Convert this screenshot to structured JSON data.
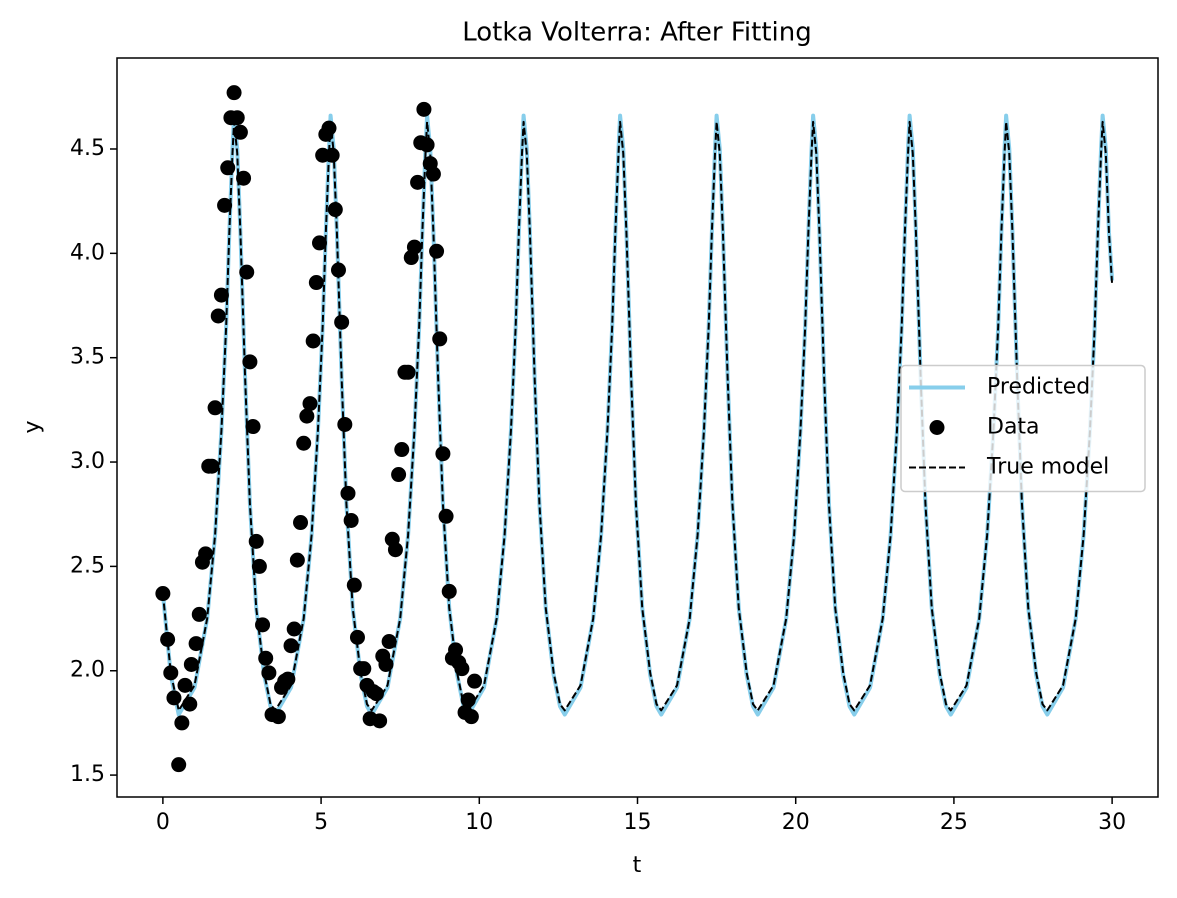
{
  "chart_data": {
    "type": "line",
    "title": "Lotka Volterra: After Fitting",
    "x_label": "t",
    "y_label": "y",
    "xlim": [
      -1.45,
      31.45
    ],
    "ylim": [
      1.395,
      4.936
    ],
    "xticks": [
      0,
      5,
      10,
      15,
      20,
      25,
      30
    ],
    "yticks": [
      1.5,
      {
        "value": 2,
        "label": "2.0"
      },
      2.5,
      {
        "value": 3,
        "label": "3.0"
      },
      3.5,
      {
        "value": 4,
        "label": "4.0"
      },
      4.5
    ],
    "legend": "center right",
    "series": [
      {
        "name": "Predicted",
        "type": "line",
        "color": "#87ceeb",
        "dashed": false,
        "x": [
          0,
          0.25,
          0.5,
          1.0,
          1.4,
          1.65,
          1.85,
          2.0,
          2.1,
          2.2,
          2.25,
          2.35,
          2.45,
          2.6,
          2.75,
          2.95,
          3.2,
          3.4,
          3.55,
          4.05,
          4.45,
          4.7,
          4.9,
          5.05,
          5.15,
          5.25,
          5.3,
          5.4,
          5.5,
          5.65,
          5.8,
          6.0,
          6.25,
          6.45,
          6.6,
          7.1,
          7.5,
          7.75,
          7.95,
          8.1,
          8.2,
          8.3,
          8.35,
          8.45,
          8.55,
          8.7,
          8.85,
          9.05,
          9.3,
          9.5,
          9.65,
          10.15,
          10.55,
          10.8,
          11.0,
          11.15,
          11.25,
          11.35,
          11.4,
          11.5,
          11.6,
          11.75,
          11.9,
          12.1,
          12.35,
          12.55,
          12.7,
          13.2,
          13.6,
          13.85,
          14.05,
          14.2,
          14.3,
          14.4,
          14.45,
          14.55,
          14.65,
          14.8,
          14.95,
          15.15,
          15.4,
          15.6,
          15.75,
          16.25,
          16.65,
          16.9,
          17.1,
          17.25,
          17.35,
          17.45,
          17.5,
          17.6,
          17.7,
          17.85,
          18.0,
          18.2,
          18.45,
          18.65,
          18.8,
          19.3,
          19.7,
          19.95,
          20.15,
          20.3,
          20.4,
          20.5,
          20.55,
          20.65,
          20.75,
          20.9,
          21.05,
          21.25,
          21.5,
          21.7,
          21.85,
          22.35,
          22.75,
          23.0,
          23.2,
          23.35,
          23.45,
          23.55,
          23.6,
          23.7,
          23.8,
          23.95,
          24.1,
          24.3,
          24.55,
          24.75,
          24.9,
          25.4,
          25.8,
          26.05,
          26.25,
          26.4,
          26.5,
          26.6,
          26.65,
          26.75,
          26.85,
          27.0,
          27.15,
          27.35,
          27.6,
          27.8,
          27.95,
          28.45,
          28.85,
          29.1,
          29.3,
          29.45,
          29.55,
          29.65,
          29.7,
          29.8,
          29.9,
          30.0
        ],
        "values": [
          2.37,
          1.98,
          1.79,
          1.92,
          2.25,
          2.65,
          3.15,
          3.65,
          4.1,
          4.5,
          4.66,
          4.5,
          4.1,
          3.4,
          2.8,
          2.3,
          1.98,
          1.83,
          1.79,
          1.92,
          2.25,
          2.65,
          3.15,
          3.65,
          4.1,
          4.5,
          4.66,
          4.5,
          4.1,
          3.4,
          2.8,
          2.3,
          1.98,
          1.83,
          1.79,
          1.92,
          2.25,
          2.65,
          3.15,
          3.65,
          4.1,
          4.5,
          4.66,
          4.5,
          4.1,
          3.4,
          2.8,
          2.3,
          1.98,
          1.83,
          1.79,
          1.92,
          2.25,
          2.65,
          3.15,
          3.65,
          4.1,
          4.5,
          4.66,
          4.5,
          4.1,
          3.4,
          2.8,
          2.3,
          1.98,
          1.83,
          1.79,
          1.92,
          2.25,
          2.65,
          3.15,
          3.65,
          4.1,
          4.5,
          4.66,
          4.5,
          4.1,
          3.4,
          2.8,
          2.3,
          1.98,
          1.83,
          1.79,
          1.92,
          2.25,
          2.65,
          3.15,
          3.65,
          4.1,
          4.5,
          4.66,
          4.5,
          4.1,
          3.4,
          2.8,
          2.3,
          1.98,
          1.83,
          1.79,
          1.92,
          2.25,
          2.65,
          3.15,
          3.65,
          4.1,
          4.5,
          4.66,
          4.5,
          4.1,
          3.4,
          2.8,
          2.3,
          1.98,
          1.83,
          1.79,
          1.92,
          2.25,
          2.65,
          3.15,
          3.65,
          4.1,
          4.5,
          4.66,
          4.5,
          4.1,
          3.4,
          2.8,
          2.3,
          1.98,
          1.83,
          1.79,
          1.92,
          2.25,
          2.65,
          3.15,
          3.65,
          4.1,
          4.5,
          4.66,
          4.5,
          4.1,
          3.4,
          2.8,
          2.3,
          1.98,
          1.83,
          1.79,
          1.92,
          2.25,
          2.65,
          3.15,
          3.65,
          4.1,
          4.5,
          4.66,
          4.5,
          4.1,
          3.87
        ]
      },
      {
        "name": "Data",
        "type": "scatter",
        "color": "#000000",
        "x": [
          0,
          0.15,
          0.25,
          0.35,
          0.5,
          0.6,
          0.7,
          0.85,
          0.9,
          1.05,
          1.15,
          1.25,
          1.35,
          1.45,
          1.55,
          1.65,
          1.75,
          1.85,
          1.95,
          2.05,
          2.15,
          2.25,
          2.35,
          2.45,
          2.55,
          2.65,
          2.75,
          2.85,
          2.95,
          3.05,
          3.15,
          3.25,
          3.35,
          3.45,
          3.65,
          3.75,
          3.85,
          3.95,
          4.05,
          4.15,
          4.25,
          4.35,
          4.45,
          4.55,
          4.65,
          4.75,
          4.85,
          4.95,
          5.05,
          5.15,
          5.25,
          5.35,
          5.45,
          5.55,
          5.65,
          5.75,
          5.85,
          5.95,
          6.05,
          6.15,
          6.25,
          6.35,
          6.45,
          6.55,
          6.65,
          6.75,
          6.85,
          6.95,
          7.05,
          7.15,
          7.25,
          7.35,
          7.45,
          7.55,
          7.65,
          7.75,
          7.85,
          7.95,
          8.05,
          8.15,
          8.25,
          8.35,
          8.45,
          8.55,
          8.65,
          8.75,
          8.85,
          8.95,
          9.05,
          9.15,
          9.25,
          9.35,
          9.45,
          9.55,
          9.65,
          9.75,
          9.85
        ],
        "values": [
          2.37,
          2.15,
          1.99,
          1.87,
          1.55,
          1.75,
          1.93,
          1.84,
          2.03,
          2.13,
          2.27,
          2.52,
          2.56,
          2.98,
          2.98,
          3.26,
          3.7,
          3.8,
          4.23,
          4.41,
          4.65,
          4.77,
          4.65,
          4.58,
          4.36,
          3.91,
          3.48,
          3.17,
          2.62,
          2.5,
          2.22,
          2.06,
          1.99,
          1.79,
          1.78,
          1.92,
          1.95,
          1.96,
          2.12,
          2.2,
          2.53,
          2.71,
          3.09,
          3.22,
          3.28,
          3.58,
          3.86,
          4.05,
          4.47,
          4.57,
          4.6,
          4.47,
          4.21,
          3.92,
          3.67,
          3.18,
          2.85,
          2.72,
          2.41,
          2.16,
          2.01,
          2.01,
          1.93,
          1.77,
          1.9,
          1.89,
          1.76,
          2.07,
          2.03,
          2.14,
          2.63,
          2.58,
          2.94,
          3.06,
          3.43,
          3.43,
          3.98,
          4.03,
          4.34,
          4.53,
          4.69,
          4.52,
          4.43,
          4.38,
          4.01,
          3.59,
          3.04,
          2.74,
          2.38,
          2.06,
          2.1,
          2.04,
          2.01,
          1.8,
          1.86,
          1.78,
          1.95
        ]
      },
      {
        "name": "True model",
        "type": "line",
        "color": "#000000",
        "dashed": true,
        "x": [
          0,
          0.25,
          0.5,
          1.0,
          1.4,
          1.65,
          1.85,
          2.0,
          2.1,
          2.2,
          2.25,
          2.35,
          2.45,
          2.6,
          2.75,
          2.95,
          3.2,
          3.4,
          3.55,
          4.05,
          4.45,
          4.7,
          4.9,
          5.05,
          5.15,
          5.25,
          5.3,
          5.4,
          5.5,
          5.65,
          5.8,
          6.0,
          6.25,
          6.45,
          6.6,
          7.1,
          7.5,
          7.75,
          7.95,
          8.1,
          8.2,
          8.3,
          8.35,
          8.45,
          8.55,
          8.7,
          8.85,
          9.05,
          9.3,
          9.5,
          9.65,
          10.15,
          10.55,
          10.8,
          11.0,
          11.15,
          11.25,
          11.35,
          11.4,
          11.5,
          11.6,
          11.75,
          11.9,
          12.1,
          12.35,
          12.55,
          12.7,
          13.2,
          13.6,
          13.85,
          14.05,
          14.2,
          14.3,
          14.4,
          14.45,
          14.55,
          14.65,
          14.8,
          14.95,
          15.15,
          15.4,
          15.6,
          15.75,
          16.25,
          16.65,
          16.9,
          17.1,
          17.25,
          17.35,
          17.45,
          17.5,
          17.6,
          17.7,
          17.85,
          18.0,
          18.2,
          18.45,
          18.65,
          18.8,
          19.3,
          19.7,
          19.95,
          20.15,
          20.3,
          20.4,
          20.5,
          20.55,
          20.65,
          20.75,
          20.9,
          21.05,
          21.25,
          21.5,
          21.7,
          21.85,
          22.35,
          22.75,
          23.0,
          23.2,
          23.35,
          23.45,
          23.55,
          23.6,
          23.7,
          23.8,
          23.95,
          24.1,
          24.3,
          24.55,
          24.75,
          24.9,
          25.4,
          25.8,
          26.05,
          26.25,
          26.4,
          26.5,
          26.6,
          26.65,
          26.75,
          26.85,
          27.0,
          27.15,
          27.35,
          27.6,
          27.8,
          27.95,
          28.45,
          28.85,
          29.1,
          29.3,
          29.45,
          29.55,
          29.65,
          29.7,
          29.8,
          29.9,
          30.0
        ],
        "values": [
          2.37,
          1.99,
          1.81,
          1.93,
          2.25,
          2.65,
          3.15,
          3.65,
          4.1,
          4.48,
          4.63,
          4.48,
          4.1,
          3.4,
          2.8,
          2.3,
          1.99,
          1.84,
          1.81,
          1.93,
          2.25,
          2.65,
          3.15,
          3.65,
          4.1,
          4.48,
          4.63,
          4.48,
          4.1,
          3.4,
          2.8,
          2.3,
          1.99,
          1.84,
          1.81,
          1.93,
          2.25,
          2.65,
          3.15,
          3.65,
          4.1,
          4.48,
          4.63,
          4.48,
          4.1,
          3.4,
          2.8,
          2.3,
          1.99,
          1.84,
          1.81,
          1.93,
          2.25,
          2.65,
          3.15,
          3.65,
          4.1,
          4.48,
          4.63,
          4.48,
          4.1,
          3.4,
          2.8,
          2.3,
          1.99,
          1.84,
          1.81,
          1.93,
          2.25,
          2.65,
          3.15,
          3.65,
          4.1,
          4.48,
          4.63,
          4.48,
          4.1,
          3.4,
          2.8,
          2.3,
          1.99,
          1.84,
          1.81,
          1.93,
          2.25,
          2.65,
          3.15,
          3.65,
          4.1,
          4.48,
          4.63,
          4.48,
          4.1,
          3.4,
          2.8,
          2.3,
          1.99,
          1.84,
          1.81,
          1.93,
          2.25,
          2.65,
          3.15,
          3.65,
          4.1,
          4.48,
          4.63,
          4.48,
          4.1,
          3.4,
          2.8,
          2.3,
          1.99,
          1.84,
          1.81,
          1.93,
          2.25,
          2.65,
          3.15,
          3.65,
          4.1,
          4.48,
          4.63,
          4.48,
          4.1,
          3.4,
          2.8,
          2.3,
          1.99,
          1.84,
          1.81,
          1.93,
          2.25,
          2.65,
          3.15,
          3.65,
          4.1,
          4.48,
          4.63,
          4.48,
          4.1,
          3.4,
          2.8,
          2.3,
          1.99,
          1.84,
          1.81,
          1.93,
          2.25,
          2.65,
          3.15,
          3.65,
          4.1,
          4.48,
          4.63,
          4.48,
          4.1,
          3.85
        ]
      }
    ]
  }
}
